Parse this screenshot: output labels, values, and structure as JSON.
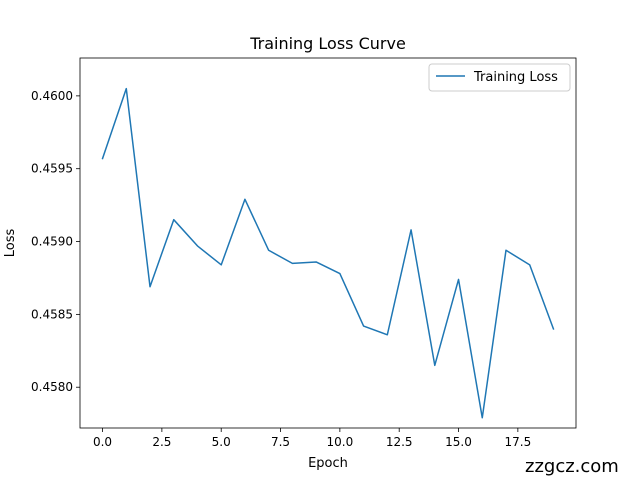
{
  "chart_data": {
    "type": "line",
    "title": "Training Loss Curve",
    "xlabel": "Epoch",
    "ylabel": "Loss",
    "xlim": [
      -0.95,
      19.95
    ],
    "ylim": [
      0.45772,
      0.46026
    ],
    "x_ticks": [
      0,
      2.5,
      5,
      7.5,
      10,
      12.5,
      15,
      17.5
    ],
    "x_tick_labels": [
      "0.0",
      "2.5",
      "5.0",
      "7.5",
      "10.0",
      "12.5",
      "15.0",
      "17.5"
    ],
    "y_ticks": [
      0.458,
      0.4585,
      0.459,
      0.4595,
      0.46
    ],
    "y_tick_labels": [
      "0.4580",
      "0.4585",
      "0.4590",
      "0.4595",
      "0.4600"
    ],
    "grid": false,
    "legend_position": "upper right",
    "series": [
      {
        "name": "Training Loss",
        "color": "#1f77b4",
        "x": [
          0,
          1,
          2,
          3,
          4,
          5,
          6,
          7,
          8,
          9,
          10,
          11,
          12,
          13,
          14,
          15,
          16,
          17,
          18,
          19
        ],
        "values": [
          0.45957,
          0.46005,
          0.45869,
          0.45915,
          0.45897,
          0.45884,
          0.45929,
          0.45894,
          0.45885,
          0.45886,
          0.45878,
          0.45842,
          0.45836,
          0.45908,
          0.45815,
          0.45874,
          0.45779,
          0.45894,
          0.45884,
          0.4584
        ]
      }
    ]
  },
  "watermark": "zzgcz.com"
}
